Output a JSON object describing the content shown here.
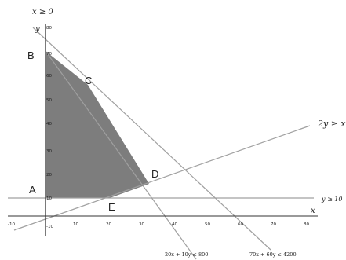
{
  "points": {
    "a": "A",
    "b": "B",
    "c": "C",
    "d": "D",
    "e": "E"
  },
  "constraints": {
    "x_nonneg": "x ≥ 0",
    "ratio": "2y ≥ x",
    "y_min": "y ≥ 10",
    "c1": "20x + 10y ≤ 800",
    "c2": "70x + 60y ≤ 4200"
  },
  "axes": {
    "x_label": "x",
    "y_label": "y",
    "x_ticks": [
      "-10",
      "10",
      "20",
      "30",
      "40",
      "50",
      "60",
      "70",
      "80"
    ],
    "y_ticks": [
      "-10",
      "10",
      "20",
      "30",
      "40",
      "50",
      "60",
      "70",
      "80"
    ]
  },
  "colors": {
    "feasible_region": "#7d7d7d",
    "lines": "#9a9a9a",
    "axes": "#333333"
  }
}
